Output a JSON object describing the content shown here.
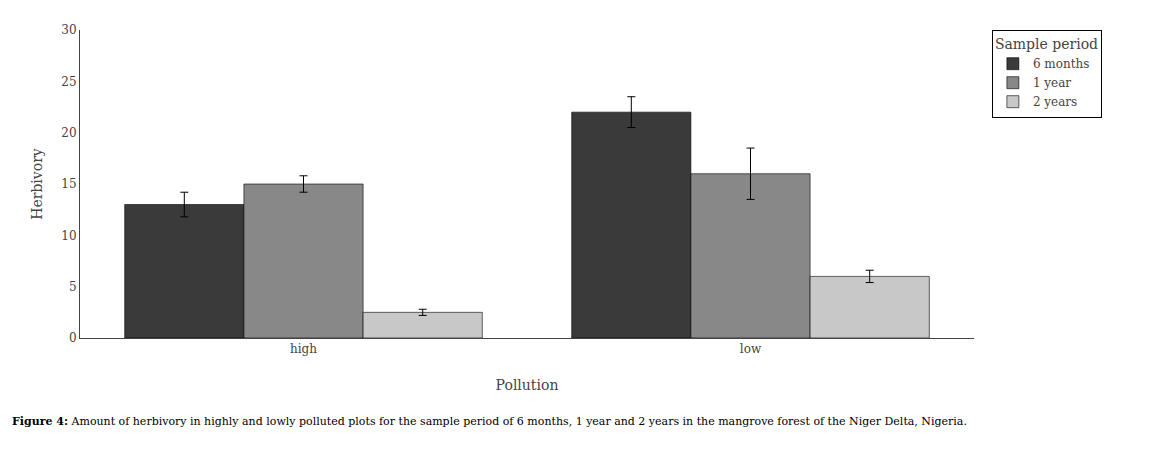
{
  "chart_data": {
    "type": "bar",
    "categories": [
      "high",
      "low"
    ],
    "series": [
      {
        "name": "6 months",
        "color": "#3a3a3a",
        "values": [
          13,
          22
        ],
        "errors": [
          1.2,
          1.5
        ]
      },
      {
        "name": "1 year",
        "color": "#888888",
        "values": [
          15,
          16
        ],
        "errors": [
          0.8,
          2.5
        ]
      },
      {
        "name": "2 years",
        "color": "#c8c8c8",
        "values": [
          2.5,
          6
        ],
        "errors": [
          0.3,
          0.6
        ]
      }
    ],
    "ylabel": "Herbivory",
    "xlabel": "Pollution",
    "legend_title": "Sample period",
    "ylim": [
      0,
      30
    ],
    "yticks": [
      0,
      5,
      10,
      15,
      20,
      25,
      30
    ],
    "grid": false,
    "legend": "upper right",
    "caption_bold": "Figure 4:",
    "caption": "Amount of herbivory in highly and lowly polluted plots for the sample period of 6 months, 1 year and 2 years in the mangrove forest of the Niger Delta, Nigeria."
  }
}
